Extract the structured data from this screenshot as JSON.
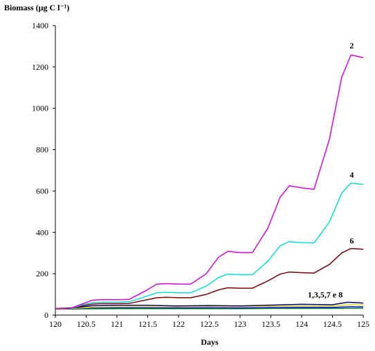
{
  "chart_data": {
    "type": "line",
    "ylabel": "Biomass (μg C l⁻¹)",
    "xlabel": "Days",
    "xlim": [
      120,
      125
    ],
    "ylim": [
      0,
      1400
    ],
    "xticks": [
      120,
      120.5,
      121,
      121.5,
      122,
      122.5,
      123,
      123.5,
      124,
      124.5,
      125
    ],
    "xtick_labels": [
      "120",
      "120.5",
      "121",
      "121.5",
      "122",
      "122.5",
      "123",
      "123.5",
      "124",
      "124.5",
      "125"
    ],
    "yticks": [
      0,
      200,
      400,
      600,
      800,
      1000,
      1200,
      1400
    ],
    "grid": false,
    "legend": "none",
    "series": [
      {
        "label": "2",
        "color": "#e000e0",
        "points": [
          [
            120,
            32
          ],
          [
            120.25,
            33
          ],
          [
            120.45,
            55
          ],
          [
            120.6,
            72
          ],
          [
            120.75,
            75
          ],
          [
            121,
            74
          ],
          [
            121.2,
            76
          ],
          [
            121.45,
            115
          ],
          [
            121.65,
            150
          ],
          [
            121.8,
            152
          ],
          [
            122,
            150
          ],
          [
            122.2,
            150
          ],
          [
            122.45,
            200
          ],
          [
            122.65,
            280
          ],
          [
            122.8,
            308
          ],
          [
            123,
            302
          ],
          [
            123.2,
            302
          ],
          [
            123.45,
            420
          ],
          [
            123.65,
            570
          ],
          [
            123.8,
            625
          ],
          [
            124,
            615
          ],
          [
            124.2,
            608
          ],
          [
            124.45,
            850
          ],
          [
            124.65,
            1150
          ],
          [
            124.8,
            1258
          ],
          [
            125,
            1245
          ]
        ]
      },
      {
        "label": "4",
        "color": "#00e0e0",
        "points": [
          [
            120,
            32
          ],
          [
            120.25,
            33
          ],
          [
            120.45,
            50
          ],
          [
            120.6,
            60
          ],
          [
            120.75,
            62
          ],
          [
            121,
            62
          ],
          [
            121.2,
            64
          ],
          [
            121.45,
            88
          ],
          [
            121.65,
            108
          ],
          [
            121.8,
            110
          ],
          [
            122,
            108
          ],
          [
            122.2,
            108
          ],
          [
            122.45,
            140
          ],
          [
            122.65,
            182
          ],
          [
            122.8,
            198
          ],
          [
            123,
            195
          ],
          [
            123.2,
            195
          ],
          [
            123.45,
            260
          ],
          [
            123.65,
            335
          ],
          [
            123.8,
            355
          ],
          [
            124,
            350
          ],
          [
            124.2,
            348
          ],
          [
            124.45,
            450
          ],
          [
            124.65,
            590
          ],
          [
            124.8,
            638
          ],
          [
            125,
            632
          ]
        ]
      },
      {
        "label": "6",
        "color": "#800000",
        "points": [
          [
            120,
            32
          ],
          [
            120.25,
            33
          ],
          [
            120.45,
            45
          ],
          [
            120.6,
            53
          ],
          [
            120.75,
            55
          ],
          [
            121,
            55
          ],
          [
            121.2,
            56
          ],
          [
            121.45,
            72
          ],
          [
            121.65,
            84
          ],
          [
            121.8,
            86
          ],
          [
            122,
            84
          ],
          [
            122.2,
            84
          ],
          [
            122.45,
            100
          ],
          [
            122.65,
            122
          ],
          [
            122.8,
            132
          ],
          [
            123,
            130
          ],
          [
            123.2,
            130
          ],
          [
            123.45,
            165
          ],
          [
            123.65,
            198
          ],
          [
            123.8,
            208
          ],
          [
            124,
            205
          ],
          [
            124.2,
            203
          ],
          [
            124.45,
            245
          ],
          [
            124.65,
            300
          ],
          [
            124.8,
            322
          ],
          [
            125,
            318
          ]
        ]
      },
      {
        "label": "",
        "color": "#000080",
        "points": [
          [
            120,
            32
          ],
          [
            120.3,
            35
          ],
          [
            120.6,
            45
          ],
          [
            121,
            47
          ],
          [
            121.5,
            47
          ],
          [
            122,
            44
          ],
          [
            122.5,
            46
          ],
          [
            123,
            44
          ],
          [
            123.5,
            48
          ],
          [
            124,
            52
          ],
          [
            124.5,
            50
          ],
          [
            124.75,
            62
          ],
          [
            125,
            58
          ]
        ]
      },
      {
        "label": "",
        "color": "#e0e000",
        "points": [
          [
            120,
            30
          ],
          [
            120.3,
            32
          ],
          [
            120.6,
            38
          ],
          [
            121,
            40
          ],
          [
            121.5,
            40
          ],
          [
            122,
            39
          ],
          [
            122.5,
            41
          ],
          [
            123,
            40
          ],
          [
            123.5,
            42
          ],
          [
            124,
            44
          ],
          [
            124.5,
            44
          ],
          [
            124.8,
            50
          ],
          [
            125,
            48
          ]
        ]
      },
      {
        "label": "",
        "color": "#0000ff",
        "points": [
          [
            120,
            30
          ],
          [
            120.3,
            31
          ],
          [
            120.6,
            34
          ],
          [
            121,
            35
          ],
          [
            121.5,
            35
          ],
          [
            122,
            34
          ],
          [
            122.5,
            35
          ],
          [
            123,
            34
          ],
          [
            123.5,
            36
          ],
          [
            124,
            37
          ],
          [
            124.5,
            37
          ],
          [
            124.8,
            40
          ],
          [
            125,
            39
          ]
        ]
      },
      {
        "label": "",
        "color": "#00a000",
        "points": [
          [
            120,
            28
          ],
          [
            120.5,
            30
          ],
          [
            121,
            31
          ],
          [
            121.5,
            31
          ],
          [
            122,
            31
          ],
          [
            122.5,
            31
          ],
          [
            123,
            31
          ],
          [
            123.5,
            32
          ],
          [
            124,
            32
          ],
          [
            124.5,
            32
          ],
          [
            125,
            33
          ]
        ]
      }
    ],
    "annotations": [
      {
        "text": "2",
        "x": 124.78,
        "y": 1290
      },
      {
        "text": "4",
        "x": 124.78,
        "y": 665
      },
      {
        "text": "6",
        "x": 124.78,
        "y": 345
      },
      {
        "text": "1,3,5,7 e 8",
        "x": 124.1,
        "y": 85
      }
    ]
  }
}
